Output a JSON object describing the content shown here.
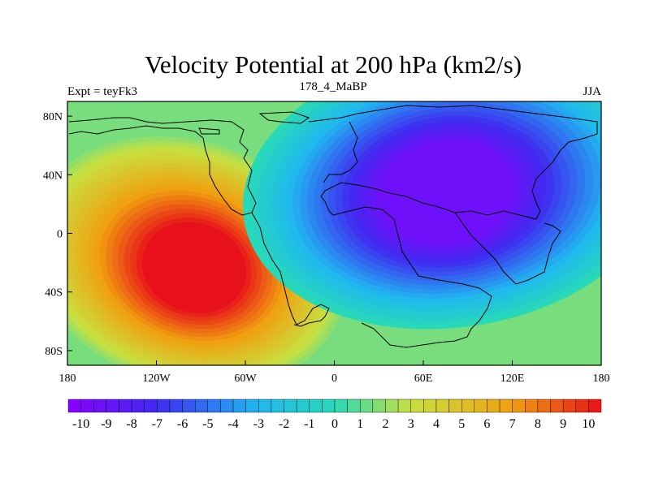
{
  "chart_data": {
    "type": "heatmap",
    "title": "Velocity Potential at 200 hPa (km2/s)",
    "subtitle_left": "Expt = teyFk3",
    "subtitle_center": "178_4_MaBP",
    "subtitle_right": "JJA",
    "xlabel": "",
    "ylabel": "",
    "xlim": [
      -180,
      180
    ],
    "ylim": [
      -90,
      90
    ],
    "x_ticks": [
      {
        "value": -180,
        "label": "180"
      },
      {
        "value": -120,
        "label": "120W"
      },
      {
        "value": -60,
        "label": "60W"
      },
      {
        "value": 0,
        "label": "0"
      },
      {
        "value": 60,
        "label": "60E"
      },
      {
        "value": 120,
        "label": "120E"
      },
      {
        "value": 180,
        "label": "180"
      }
    ],
    "y_ticks": [
      {
        "value": 80,
        "label": "80N"
      },
      {
        "value": 40,
        "label": "40N"
      },
      {
        "value": 0,
        "label": "0"
      },
      {
        "value": -40,
        "label": "40S"
      },
      {
        "value": -80,
        "label": "80S"
      }
    ],
    "colorbar": {
      "min": -10.5,
      "max": 10.5,
      "step": 0.5,
      "labels": [
        "-10",
        "-9",
        "-8",
        "-7",
        "-6",
        "-5",
        "-4",
        "-3",
        "-2",
        "-1",
        "0",
        "1",
        "2",
        "3",
        "4",
        "5",
        "6",
        "7",
        "8",
        "9",
        "10"
      ],
      "label_values": [
        -10,
        -9,
        -8,
        -7,
        -6,
        -5,
        -4,
        -3,
        -2,
        -1,
        0,
        1,
        2,
        3,
        4,
        5,
        6,
        7,
        8,
        9,
        10
      ]
    },
    "field_centers": [
      {
        "name": "divergence-maximum",
        "lon": -100,
        "lat": -20,
        "value": 10
      },
      {
        "name": "convergence-minimum",
        "lon": 80,
        "lat": 30,
        "value": -10
      }
    ],
    "colors": {
      "min": "#8a00ff",
      "low": "#3f2bf0",
      "mid_low": "#20b8f0",
      "zero": "#27d9b8",
      "mid_high": "#c8e040",
      "high": "#f0a010",
      "max": "#e8101a"
    }
  }
}
